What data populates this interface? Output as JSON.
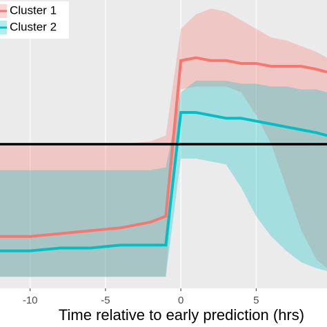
{
  "chart_data": {
    "type": "ribbon-line",
    "x_label": "Time relative to early prediction (hrs)",
    "x": [
      -12,
      -10,
      -8,
      -6,
      -4,
      -2,
      -1,
      0,
      1,
      2,
      3,
      4,
      5,
      6,
      7,
      8,
      9,
      9.7
    ],
    "xlim": [
      -12,
      9.7
    ],
    "xticks": [
      -10,
      -5,
      0,
      5
    ],
    "ylim": [
      0,
      1
    ],
    "hline": 0.5,
    "grid": true,
    "legend": "top-left",
    "series": [
      {
        "name": "Cluster 1",
        "color": "#F8766D",
        "values": [
          0.18,
          0.18,
          0.19,
          0.2,
          0.21,
          0.23,
          0.25,
          0.79,
          0.8,
          0.79,
          0.79,
          0.78,
          0.78,
          0.77,
          0.77,
          0.77,
          0.76,
          0.75
        ],
        "upper": [
          0.5,
          0.5,
          0.5,
          0.5,
          0.5,
          0.51,
          0.53,
          0.9,
          0.95,
          0.97,
          0.96,
          0.93,
          0.9,
          0.87,
          0.86,
          0.84,
          0.82,
          0.8
        ],
        "lower": [
          0.04,
          0.04,
          0.04,
          0.04,
          0.04,
          0.04,
          0.04,
          0.69,
          0.7,
          0.7,
          0.7,
          0.68,
          0.6,
          0.5,
          0.35,
          0.2,
          0.1,
          0.07
        ]
      },
      {
        "name": "Cluster 2",
        "color": "#00BFC4",
        "values": [
          0.13,
          0.13,
          0.14,
          0.14,
          0.15,
          0.15,
          0.15,
          0.61,
          0.61,
          0.6,
          0.59,
          0.59,
          0.58,
          0.57,
          0.56,
          0.55,
          0.54,
          0.53
        ],
        "upper": [
          0.41,
          0.41,
          0.41,
          0.41,
          0.41,
          0.41,
          0.42,
          0.68,
          0.72,
          0.72,
          0.72,
          0.71,
          0.71,
          0.7,
          0.7,
          0.69,
          0.69,
          0.68
        ],
        "lower": [
          0.04,
          0.04,
          0.04,
          0.04,
          0.04,
          0.04,
          0.04,
          0.45,
          0.45,
          0.44,
          0.43,
          0.35,
          0.25,
          0.18,
          0.13,
          0.09,
          0.07,
          0.06
        ]
      }
    ]
  }
}
